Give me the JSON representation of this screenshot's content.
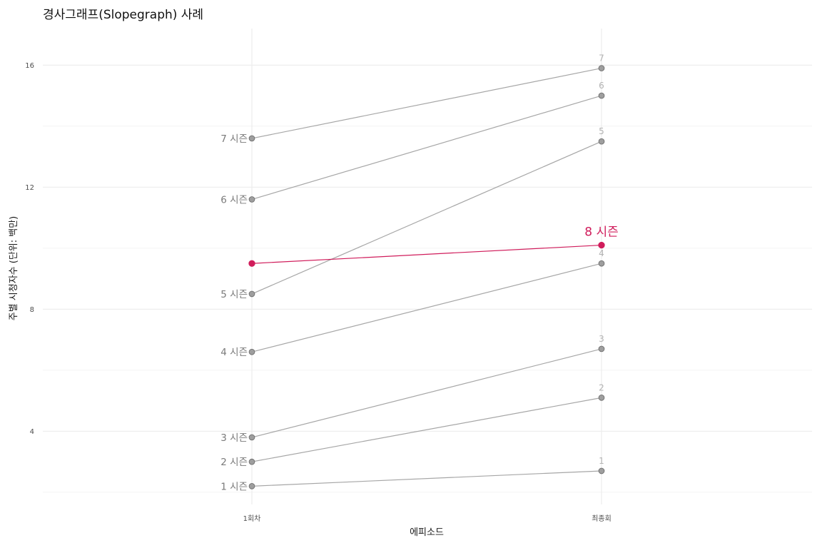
{
  "chart_data": {
    "type": "line",
    "title": "경사그래프(Slopegraph) 사례",
    "xlabel": "에피소드",
    "ylabel": "주별 시청자수 (단위: 백만)",
    "categories": [
      "1회차",
      "최종회"
    ],
    "ylim": [
      1.6,
      17.2
    ],
    "yticks": [
      4,
      8,
      12,
      16
    ],
    "grid": true,
    "series": [
      {
        "name": "1",
        "left_label": "1 시즌",
        "right_label": "1",
        "values": [
          2.2,
          2.7
        ],
        "highlight": false
      },
      {
        "name": "2",
        "left_label": "2 시즌",
        "right_label": "2",
        "values": [
          3.0,
          5.1
        ],
        "highlight": false
      },
      {
        "name": "3",
        "left_label": "3 시즌",
        "right_label": "3",
        "values": [
          3.8,
          6.7
        ],
        "highlight": false
      },
      {
        "name": "4",
        "left_label": "4 시즌",
        "right_label": "4",
        "values": [
          6.6,
          9.5
        ],
        "highlight": false
      },
      {
        "name": "5",
        "left_label": "5 시즌",
        "right_label": "5",
        "values": [
          8.5,
          13.5
        ],
        "highlight": false
      },
      {
        "name": "6",
        "left_label": "6 시즌",
        "right_label": "6",
        "values": [
          11.6,
          15.0
        ],
        "highlight": false
      },
      {
        "name": "7",
        "left_label": "7 시즌",
        "right_label": "7",
        "values": [
          13.6,
          15.9
        ],
        "highlight": false
      },
      {
        "name": "8",
        "left_label": "",
        "right_label": "8 시즌",
        "values": [
          9.5,
          10.1
        ],
        "highlight": true
      }
    ],
    "colors": {
      "default_line": "#a6a6a6",
      "default_point_fill": "#9e9e9e",
      "default_point_stroke": "#6f6f6f",
      "left_label": "#7a7a7a",
      "right_label": "#b3b3b3",
      "highlight": "#d01c5b"
    }
  }
}
